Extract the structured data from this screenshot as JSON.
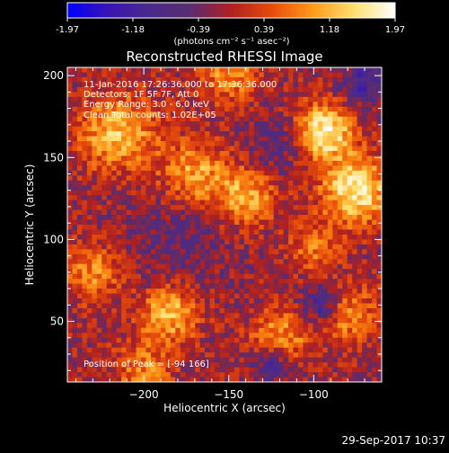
{
  "colorbar": {
    "tick_labels": [
      "-1.97",
      "-1.18",
      "-0.39",
      "0.39",
      "1.18",
      "1.97"
    ],
    "units": "(photons cm⁻² s⁻¹ asec⁻²)",
    "range": [
      -1.97,
      1.97
    ],
    "colors": [
      "#0000ff",
      "#3a14b4",
      "#4a2a8c",
      "#5a2c70",
      "#b02020",
      "#e84c0a",
      "#ff9a1a",
      "#ffe070",
      "#ffffff"
    ]
  },
  "plot": {
    "title": "Reconstructed RHESSI Image",
    "xlabel": "Heliocentric X (arcsec)",
    "ylabel": "Heliocentric Y (arcsec)",
    "xlim": [
      -245,
      -60
    ],
    "ylim": [
      13,
      205
    ],
    "x_ticks": [
      {
        "value": -200,
        "label": "−200"
      },
      {
        "value": -150,
        "label": "−150"
      },
      {
        "value": -100,
        "label": "−100"
      }
    ],
    "y_ticks": [
      {
        "value": 50,
        "label": "50"
      },
      {
        "value": 100,
        "label": "100"
      },
      {
        "value": 150,
        "label": "150"
      },
      {
        "value": 200,
        "label": "200"
      }
    ],
    "annotations": [
      "11-Jan-2016 17:26:36.000 to 17:36:36.000",
      "Detectors: 1F 5F 7F, Att 0",
      "Energy Range: 3.0 - 6.0 keV",
      "Clean    Total counts: 1.02E+05"
    ],
    "peak_label": "Position of Peak = [-94 166]"
  },
  "footer": {
    "timestamp": "29-Sep-2017 10:37"
  },
  "chart_data": {
    "type": "heatmap",
    "title": "Reconstructed RHESSI Image",
    "xlabel": "Heliocentric X (arcsec)",
    "ylabel": "Heliocentric Y (arcsec)",
    "x_range": [
      -245,
      -60
    ],
    "y_range": [
      13,
      205
    ],
    "value_range": [
      -1.97,
      1.97
    ],
    "peak_position": [
      -94,
      166
    ],
    "grid": false,
    "grid_size": [
      64,
      64
    ],
    "blobs": [
      {
        "x": -94,
        "y": 166,
        "amplitude": 1.9,
        "sigma": 12
      },
      {
        "x": -75,
        "y": 130,
        "amplitude": 1.8,
        "sigma": 14
      },
      {
        "x": -215,
        "y": 165,
        "amplitude": 1.4,
        "sigma": 16
      },
      {
        "x": -170,
        "y": 140,
        "amplitude": 1.2,
        "sigma": 14
      },
      {
        "x": -140,
        "y": 125,
        "amplitude": 1.3,
        "sigma": 12
      },
      {
        "x": -185,
        "y": 55,
        "amplitude": 1.4,
        "sigma": 12
      },
      {
        "x": -120,
        "y": 40,
        "amplitude": 1.1,
        "sigma": 12
      },
      {
        "x": -80,
        "y": 55,
        "amplitude": 1.0,
        "sigma": 12
      },
      {
        "x": -230,
        "y": 80,
        "amplitude": 1.0,
        "sigma": 12
      },
      {
        "x": -150,
        "y": 200,
        "amplitude": 1.0,
        "sigma": 12
      },
      {
        "x": -200,
        "y": 20,
        "amplitude": 0.9,
        "sigma": 12
      },
      {
        "x": -100,
        "y": 95,
        "amplitude": 0.8,
        "sigma": 10
      },
      {
        "x": -180,
        "y": 100,
        "amplitude": -0.4,
        "sigma": 25
      },
      {
        "x": -120,
        "y": 160,
        "amplitude": -0.6,
        "sigma": 12
      },
      {
        "x": -95,
        "y": 60,
        "amplitude": -1.1,
        "sigma": 8
      },
      {
        "x": -125,
        "y": 25,
        "amplitude": -1.0,
        "sigma": 8
      },
      {
        "x": -70,
        "y": 195,
        "amplitude": -0.9,
        "sigma": 10
      }
    ]
  }
}
